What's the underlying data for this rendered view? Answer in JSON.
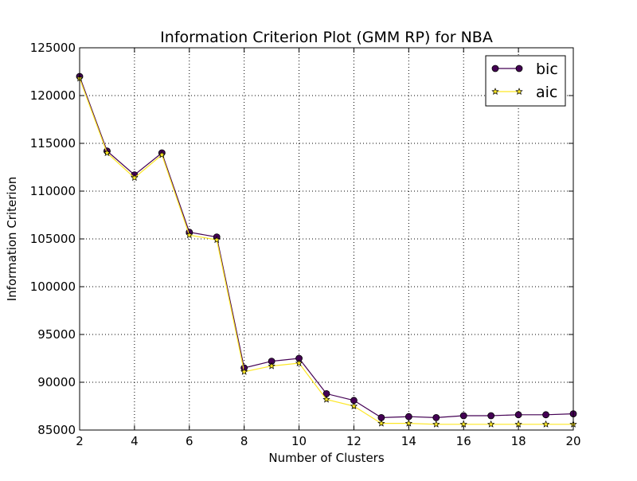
{
  "chart_data": {
    "type": "line",
    "title": "Information Criterion Plot (GMM RP) for NBA",
    "xlabel": "Number of Clusters",
    "ylabel": "Information Criterion",
    "xlim": [
      2,
      20
    ],
    "ylim": [
      85000,
      125000
    ],
    "x_ticks": [
      "2",
      "4",
      "6",
      "8",
      "10",
      "12",
      "14",
      "16",
      "18",
      "20"
    ],
    "y_ticks": [
      "85000",
      "90000",
      "95000",
      "100000",
      "105000",
      "110000",
      "115000",
      "120000",
      "125000"
    ],
    "grid": true,
    "legend_position": "top-right",
    "x": [
      2,
      3,
      4,
      5,
      6,
      7,
      8,
      9,
      10,
      11,
      12,
      13,
      14,
      15,
      16,
      17,
      18,
      19,
      20
    ],
    "series": [
      {
        "name": "bic",
        "color": "#440154",
        "marker": "circle",
        "values": [
          122000,
          114200,
          111700,
          114000,
          105700,
          105200,
          91500,
          92200,
          92500,
          88800,
          88100,
          86300,
          86400,
          86300,
          86500,
          86500,
          86600,
          86600,
          86700
        ]
      },
      {
        "name": "aic",
        "color": "#fde725",
        "marker": "star",
        "values": [
          121800,
          114000,
          111400,
          113800,
          105400,
          104900,
          91100,
          91700,
          92000,
          88200,
          87500,
          85700,
          85700,
          85600,
          85600,
          85600,
          85600,
          85600,
          85600
        ]
      }
    ]
  }
}
